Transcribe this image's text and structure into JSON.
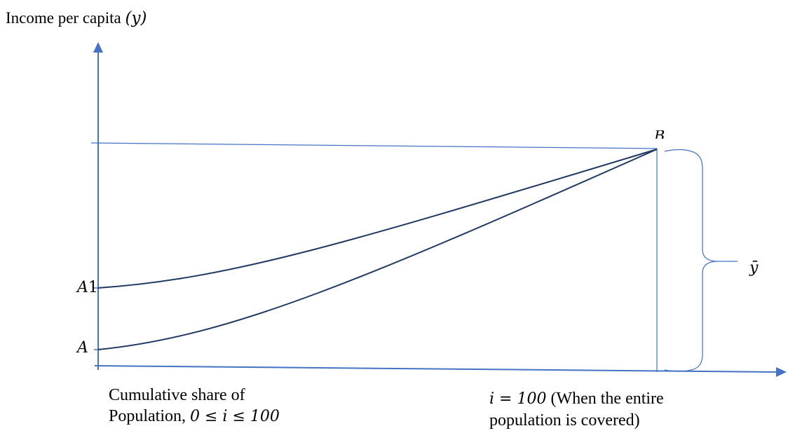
{
  "diagram": {
    "y_axis_title": {
      "text": "Income per capita ",
      "symbol": "(y)"
    },
    "point_labels": {
      "a1": {
        "letter": "A",
        "digit": "1"
      },
      "a": "A",
      "b": "B"
    },
    "mean_label": "ȳ",
    "x_axis_caption": {
      "line1": "Cumulative share of",
      "line2_text": "Population, ",
      "line2_math": "0 ≤ i ≤ 100"
    },
    "endpoint_caption": {
      "line1_math": "i = 100",
      "line1_text": " (When the entire",
      "line2": "population is covered)"
    },
    "colors": {
      "axis": "#4472c4",
      "curve": "#1f3864",
      "guide": "#4472c4"
    }
  }
}
